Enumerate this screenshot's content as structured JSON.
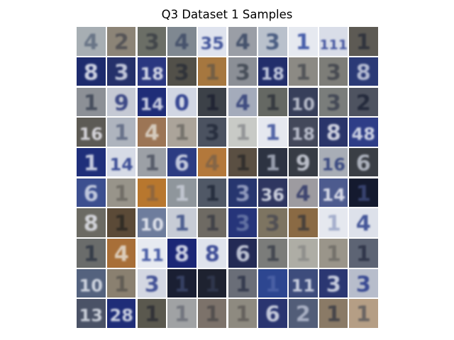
{
  "figure": {
    "title": "Q3 Dataset 1 Samples",
    "rows": 10,
    "cols": 10,
    "tiles": [
      {
        "bg": "#a7aeb3",
        "fg": "#5f6c80",
        "glyph": "4"
      },
      {
        "bg": "#8c8477",
        "fg": "#4c4c52",
        "glyph": "2"
      },
      {
        "bg": "#6b6e66",
        "fg": "#3c4046",
        "glyph": "3"
      },
      {
        "bg": "#7f8891",
        "fg": "#3e4a66",
        "glyph": "4"
      },
      {
        "bg": "#dfe3ee",
        "fg": "#2b3f8f",
        "glyph": "35"
      },
      {
        "bg": "#9a9ea6",
        "fg": "#384664",
        "glyph": "4"
      },
      {
        "bg": "#b9c1cc",
        "fg": "#3a4f77",
        "glyph": "3"
      },
      {
        "bg": "#e6e9f0",
        "fg": "#2d47a0",
        "glyph": "1"
      },
      {
        "bg": "#d9dde8",
        "fg": "#2c3f94",
        "glyph": "111"
      },
      {
        "bg": "#5d5a54",
        "fg": "#2a2e3a",
        "glyph": "1"
      },
      {
        "bg": "#1d2b6d",
        "fg": "#e8ebf4",
        "glyph": "8"
      },
      {
        "bg": "#25316a",
        "fg": "#d9deeb",
        "glyph": "3"
      },
      {
        "bg": "#2a3780",
        "fg": "#eef0f6",
        "glyph": "18"
      },
      {
        "bg": "#525049",
        "fg": "#2b2f37",
        "glyph": "3"
      },
      {
        "bg": "#a6773f",
        "fg": "#6b5a46",
        "glyph": "1"
      },
      {
        "bg": "#8b8f96",
        "fg": "#3d4450",
        "glyph": "3"
      },
      {
        "bg": "#222e6b",
        "fg": "#d8dded",
        "glyph": "18"
      },
      {
        "bg": "#8c8a84",
        "fg": "#4a4c52",
        "glyph": "1"
      },
      {
        "bg": "#7d7d78",
        "fg": "#3f434c",
        "glyph": "3"
      },
      {
        "bg": "#2b3a76",
        "fg": "#c9cfe0",
        "glyph": "8"
      },
      {
        "bg": "#8c9096",
        "fg": "#3a4354",
        "glyph": "1"
      },
      {
        "bg": "#c5c9d4",
        "fg": "#27347a",
        "glyph": "9"
      },
      {
        "bg": "#1f2d78",
        "fg": "#e3e6f0",
        "glyph": "14"
      },
      {
        "bg": "#d1d6e3",
        "fg": "#1d2f86",
        "glyph": "0"
      },
      {
        "bg": "#3c4148",
        "fg": "#1c2030",
        "glyph": "1"
      },
      {
        "bg": "#a4abbb",
        "fg": "#2f3d78",
        "glyph": "4"
      },
      {
        "bg": "#656863",
        "fg": "#2e323a",
        "glyph": "1"
      },
      {
        "bg": "#373f5a",
        "fg": "#c8ccd8",
        "glyph": "10"
      },
      {
        "bg": "#7a7d7b",
        "fg": "#3b4050",
        "glyph": "3"
      },
      {
        "bg": "#4e5360",
        "fg": "#1d2336",
        "glyph": "2"
      },
      {
        "bg": "#5c5a55",
        "fg": "#e8e8ee",
        "glyph": "16"
      },
      {
        "bg": "#aeb4be",
        "fg": "#5b6680",
        "glyph": "1"
      },
      {
        "bg": "#9c7555",
        "fg": "#e0d9cf",
        "glyph": "4"
      },
      {
        "bg": "#aba49a",
        "fg": "#6d6b66",
        "glyph": "1"
      },
      {
        "bg": "#4b5260",
        "fg": "#232a3a",
        "glyph": "3"
      },
      {
        "bg": "#c8cac6",
        "fg": "#8c8e90",
        "glyph": "1"
      },
      {
        "bg": "#e5e8ef",
        "fg": "#3a4f9a",
        "glyph": "1"
      },
      {
        "bg": "#43485a",
        "fg": "#c9cddb",
        "glyph": "18"
      },
      {
        "bg": "#2a356a",
        "fg": "#e6e8f0",
        "glyph": "8"
      },
      {
        "bg": "#2e3d87",
        "fg": "#e7eaf3",
        "glyph": "48"
      },
      {
        "bg": "#1f2f7a",
        "fg": "#dfe3ef",
        "glyph": "1"
      },
      {
        "bg": "#d6dbe6",
        "fg": "#23378a",
        "glyph": "14"
      },
      {
        "bg": "#9ca0a6",
        "fg": "#4b5160",
        "glyph": "1"
      },
      {
        "bg": "#2c3c82",
        "fg": "#dde1ec",
        "glyph": "6"
      },
      {
        "bg": "#b3783b",
        "fg": "#7c6248",
        "glyph": "4"
      },
      {
        "bg": "#5a4f42",
        "fg": "#2c2a2a",
        "glyph": "1"
      },
      {
        "bg": "#2d3342",
        "fg": "#aab0c0",
        "glyph": "1"
      },
      {
        "bg": "#373c45",
        "fg": "#cfd3dd",
        "glyph": "9"
      },
      {
        "bg": "#a8adb6",
        "fg": "#2a3a7a",
        "glyph": "16"
      },
      {
        "bg": "#3a3e45",
        "fg": "#bfc4d0",
        "glyph": "6"
      },
      {
        "bg": "#3c4f8f",
        "fg": "#d6dcea",
        "glyph": "6"
      },
      {
        "bg": "#98948a",
        "fg": "#6a6760",
        "glyph": "1"
      },
      {
        "bg": "#b8772e",
        "fg": "#8a6440",
        "glyph": "1"
      },
      {
        "bg": "#8f969c",
        "fg": "#c9ced8",
        "glyph": "1"
      },
      {
        "bg": "#505866",
        "fg": "#1f2738",
        "glyph": "1"
      },
      {
        "bg": "#27366f",
        "fg": "#9fa9c8",
        "glyph": "3"
      },
      {
        "bg": "#2f3660",
        "fg": "#e5e8f1",
        "glyph": "36"
      },
      {
        "bg": "#9d9ba0",
        "fg": "#2f3868",
        "glyph": "4"
      },
      {
        "bg": "#4d5b8e",
        "fg": "#eef0f6",
        "glyph": "14"
      },
      {
        "bg": "#141a2f",
        "fg": "#3e4a7a",
        "glyph": "1"
      },
      {
        "bg": "#6b6a63",
        "fg": "#e3e5ec",
        "glyph": "8"
      },
      {
        "bg": "#5b4a37",
        "fg": "#2a2722",
        "glyph": "1"
      },
      {
        "bg": "#6e7d9d",
        "fg": "#f0f2f7",
        "glyph": "10"
      },
      {
        "bg": "#c7ccd6",
        "fg": "#3a4c86",
        "glyph": "1"
      },
      {
        "bg": "#6e6a63",
        "fg": "#3a3c44",
        "glyph": "1"
      },
      {
        "bg": "#26357a",
        "fg": "#6b7aa8",
        "glyph": "3"
      },
      {
        "bg": "#7d7461",
        "fg": "#4a4a52",
        "glyph": "3"
      },
      {
        "bg": "#8a6a44",
        "fg": "#3e3a3a",
        "glyph": "1"
      },
      {
        "bg": "#e5e8ef",
        "fg": "#9aa6c6",
        "glyph": "1"
      },
      {
        "bg": "#dde1ea",
        "fg": "#2b3f8c",
        "glyph": "4"
      },
      {
        "bg": "#6a6c6b",
        "fg": "#2e3544",
        "glyph": "1"
      },
      {
        "bg": "#a86f38",
        "fg": "#e6ddd0",
        "glyph": "4"
      },
      {
        "bg": "#e7eaf1",
        "fg": "#2d4499",
        "glyph": "11"
      },
      {
        "bg": "#1b2675",
        "fg": "#e7eaf3",
        "glyph": "8"
      },
      {
        "bg": "#dfe3ec",
        "fg": "#24358a",
        "glyph": "8"
      },
      {
        "bg": "#232a55",
        "fg": "#d5d9e6",
        "glyph": "6"
      },
      {
        "bg": "#7b7c7a",
        "fg": "#3b3f4a",
        "glyph": "1"
      },
      {
        "bg": "#aeada5",
        "fg": "#8a8a88",
        "glyph": "1"
      },
      {
        "bg": "#9a958a",
        "fg": "#6e6b66",
        "glyph": "1"
      },
      {
        "bg": "#5d6474",
        "fg": "#2a3045",
        "glyph": "1"
      },
      {
        "bg": "#54627e",
        "fg": "#e3e7ef",
        "glyph": "10"
      },
      {
        "bg": "#8a8070",
        "fg": "#5a5650",
        "glyph": "1"
      },
      {
        "bg": "#d3d7e2",
        "fg": "#2c3d8a",
        "glyph": "3"
      },
      {
        "bg": "#1a1f33",
        "fg": "#3c466b",
        "glyph": "1"
      },
      {
        "bg": "#1e2230",
        "fg": "#333a52",
        "glyph": "1"
      },
      {
        "bg": "#6a6e78",
        "fg": "#2e3448",
        "glyph": "1"
      },
      {
        "bg": "#2d4690",
        "fg": "#4e64a8",
        "glyph": "1"
      },
      {
        "bg": "#3d4c7c",
        "fg": "#e0e4ee",
        "glyph": "11"
      },
      {
        "bg": "#2b3772",
        "fg": "#dfe3ee",
        "glyph": "3"
      },
      {
        "bg": "#b7bdcb",
        "fg": "#24368a",
        "glyph": "3"
      },
      {
        "bg": "#4a5266",
        "fg": "#e0e4ec",
        "glyph": "13"
      },
      {
        "bg": "#1f2d78",
        "fg": "#e6e9f2",
        "glyph": "28"
      },
      {
        "bg": "#5a584e",
        "fg": "#2c2d34",
        "glyph": "1"
      },
      {
        "bg": "#a0a2a4",
        "fg": "#6a6e78",
        "glyph": "1"
      },
      {
        "bg": "#7c726a",
        "fg": "#4d4a4a",
        "glyph": "1"
      },
      {
        "bg": "#8e8a80",
        "fg": "#5e5b58",
        "glyph": "1"
      },
      {
        "bg": "#2a3570",
        "fg": "#dde1ec",
        "glyph": "6"
      },
      {
        "bg": "#525d78",
        "fg": "#b6bdd0",
        "glyph": "2"
      },
      {
        "bg": "#8a7a66",
        "fg": "#3b3c44",
        "glyph": "1"
      },
      {
        "bg": "#b59e85",
        "fg": "#5c5a5c",
        "glyph": "1"
      }
    ]
  }
}
